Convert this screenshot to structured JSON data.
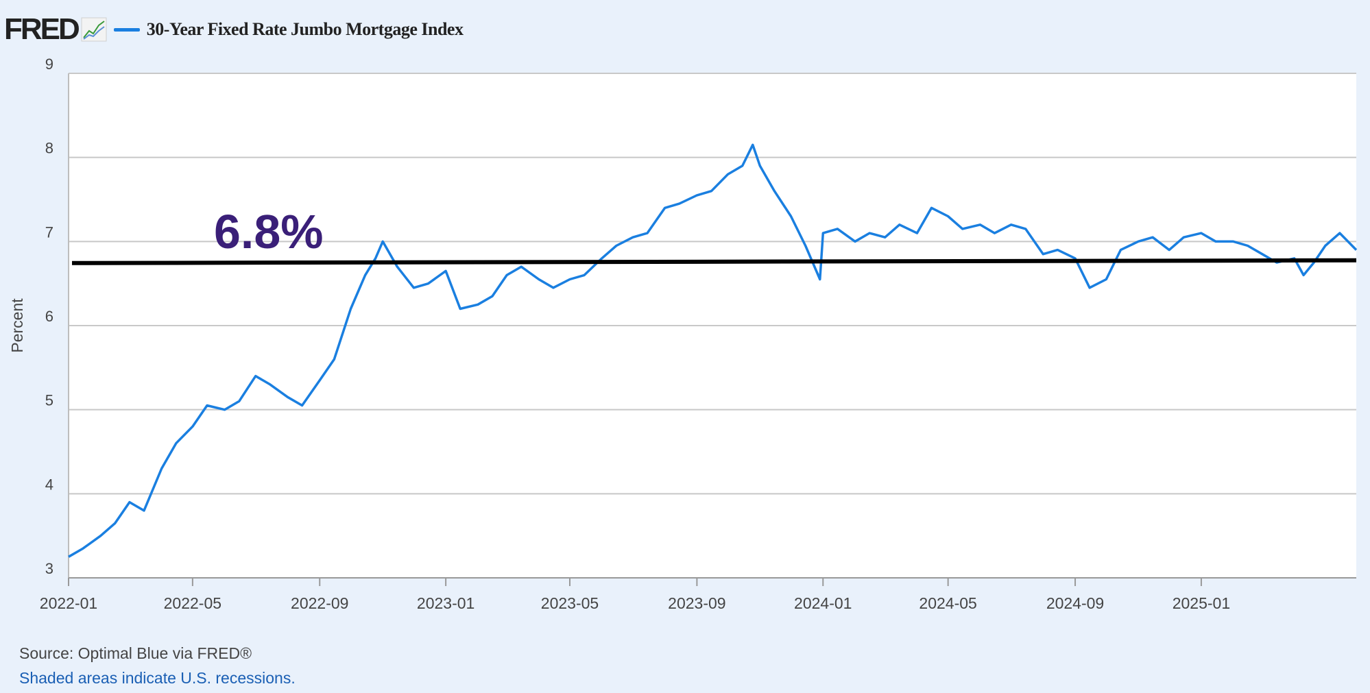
{
  "header": {
    "logo_text": "FRED",
    "logo_icon": "chart-graph-icon",
    "legend_label": "30-Year Fixed Rate Jumbo Mortgage Index"
  },
  "colors": {
    "background": "#e9f1fb",
    "plot_background": "#ffffff",
    "series": "#1a7fe0",
    "annotation_text": "#3a1f78",
    "reference_line": "#000000",
    "grid": "#c8c8c8"
  },
  "chart_data": {
    "type": "line",
    "title": "",
    "ylabel": "Percent",
    "xlabel": "",
    "ylim": [
      3,
      9
    ],
    "xlim": [
      "2022-01-01",
      "2025-05-31"
    ],
    "y_ticks": [
      "3",
      "4",
      "5",
      "6",
      "7",
      "8",
      "9"
    ],
    "x_ticks": [
      "2022-01",
      "2022-05",
      "2022-09",
      "2023-01",
      "2023-05",
      "2023-09",
      "2024-01",
      "2024-05",
      "2024-09",
      "2025-01"
    ],
    "grid": true,
    "legend_position": "top-left",
    "series": [
      {
        "name": "30-Year Fixed Rate Jumbo Mortgage Index",
        "x": [
          "2022-01-01",
          "2022-01-15",
          "2022-02-01",
          "2022-02-15",
          "2022-03-01",
          "2022-03-15",
          "2022-04-01",
          "2022-04-15",
          "2022-05-01",
          "2022-05-15",
          "2022-06-01",
          "2022-06-15",
          "2022-07-01",
          "2022-07-15",
          "2022-08-01",
          "2022-08-15",
          "2022-09-01",
          "2022-09-15",
          "2022-10-01",
          "2022-10-15",
          "2022-10-25",
          "2022-11-01",
          "2022-11-15",
          "2022-12-01",
          "2022-12-15",
          "2023-01-01",
          "2023-01-15",
          "2023-02-01",
          "2023-02-15",
          "2023-03-01",
          "2023-03-15",
          "2023-04-01",
          "2023-04-15",
          "2023-05-01",
          "2023-05-15",
          "2023-06-01",
          "2023-06-15",
          "2023-07-01",
          "2023-07-15",
          "2023-08-01",
          "2023-08-15",
          "2023-09-01",
          "2023-09-15",
          "2023-10-01",
          "2023-10-15",
          "2023-10-25",
          "2023-11-01",
          "2023-11-15",
          "2023-12-01",
          "2023-12-15",
          "2023-12-29",
          "2024-01-01",
          "2024-01-15",
          "2024-02-01",
          "2024-02-15",
          "2024-03-01",
          "2024-03-15",
          "2024-04-01",
          "2024-04-15",
          "2024-05-01",
          "2024-05-15",
          "2024-06-01",
          "2024-06-15",
          "2024-07-01",
          "2024-07-15",
          "2024-08-01",
          "2024-08-15",
          "2024-09-01",
          "2024-09-15",
          "2024-10-01",
          "2024-10-15",
          "2024-11-01",
          "2024-11-15",
          "2024-12-01",
          "2024-12-15",
          "2025-01-01",
          "2025-01-15",
          "2025-02-01",
          "2025-02-15",
          "2025-03-01",
          "2025-03-15",
          "2025-04-01",
          "2025-04-10",
          "2025-04-20",
          "2025-05-01",
          "2025-05-15",
          "2025-05-31"
        ],
        "y": [
          3.25,
          3.35,
          3.5,
          3.65,
          3.9,
          3.8,
          4.3,
          4.6,
          4.8,
          5.05,
          5.0,
          5.1,
          5.4,
          5.3,
          5.15,
          5.05,
          5.35,
          5.6,
          6.2,
          6.6,
          6.8,
          7.0,
          6.7,
          6.45,
          6.5,
          6.65,
          6.2,
          6.25,
          6.35,
          6.6,
          6.7,
          6.55,
          6.45,
          6.55,
          6.6,
          6.8,
          6.95,
          7.05,
          7.1,
          7.4,
          7.45,
          7.55,
          7.6,
          7.8,
          7.9,
          8.15,
          7.9,
          7.6,
          7.3,
          6.95,
          6.55,
          7.1,
          7.15,
          7.0,
          7.1,
          7.05,
          7.2,
          7.1,
          7.4,
          7.3,
          7.15,
          7.2,
          7.1,
          7.2,
          7.15,
          6.85,
          6.9,
          6.8,
          6.45,
          6.55,
          6.9,
          7.0,
          7.05,
          6.9,
          7.05,
          7.1,
          7.0,
          7.0,
          6.95,
          6.85,
          6.75,
          6.8,
          6.6,
          6.75,
          6.95,
          7.1,
          6.9
        ]
      }
    ],
    "annotations": [
      {
        "text": "6.8%",
        "type": "horizontal-line",
        "y": 6.76
      }
    ]
  },
  "footer": {
    "source": "Source: Optimal Blue via FRED®",
    "recessions": "Shaded areas indicate U.S. recessions."
  }
}
